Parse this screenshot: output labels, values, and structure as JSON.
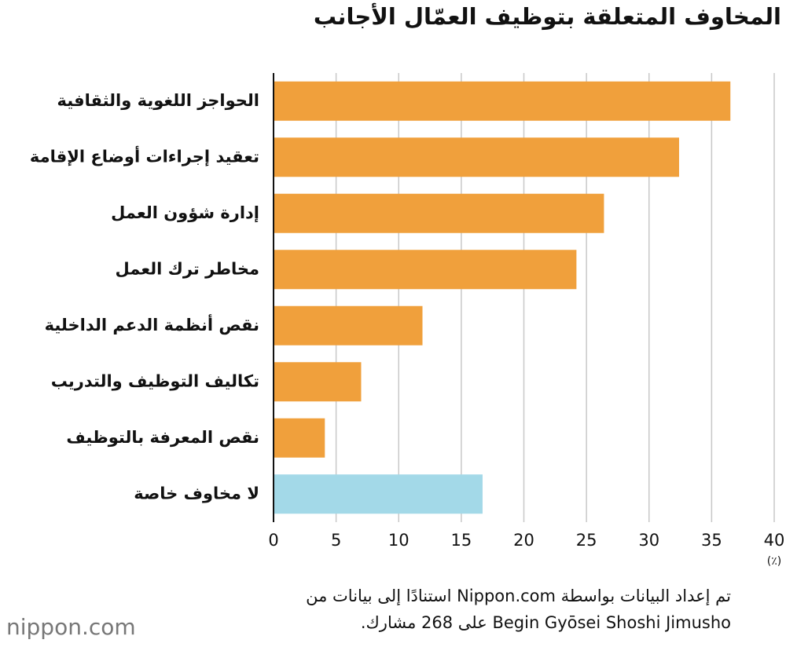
{
  "chart_data": {
    "type": "barh",
    "title": "المخاوف المتعلقة بتوظيف العمّال الأجانب",
    "categories": [
      "الحواجز اللغوية والثقافية",
      "تعقيد إجراءات أوضاع الإقامة",
      "إدارة شؤون العمل",
      "مخاطر ترك العمل",
      "نقص أنظمة الدعم الداخلية",
      "تكاليف التوظيف والتدريب",
      "نقص المعرفة بالتوظيف",
      "لا مخاوف خاصة"
    ],
    "values": [
      36.5,
      32.4,
      26.4,
      24.2,
      11.9,
      7.0,
      4.1,
      16.7
    ],
    "colors": [
      "#f0a03c",
      "#f0a03c",
      "#f0a03c",
      "#f0a03c",
      "#f0a03c",
      "#f0a03c",
      "#f0a03c",
      "#a3d9e8"
    ],
    "xlim": [
      0,
      40
    ],
    "xticks": [
      0,
      5,
      10,
      15,
      20,
      25,
      30,
      35,
      40
    ],
    "x_unit": "(٪)",
    "grid": true,
    "source_lines": [
      "تم إعداد البيانات بواسطة Nippon.com استنادًا إلى بيانات من",
      "Begin Gyōsei Shoshi Jimusho على 268 مشارك."
    ],
    "logo": "nippon.com"
  }
}
